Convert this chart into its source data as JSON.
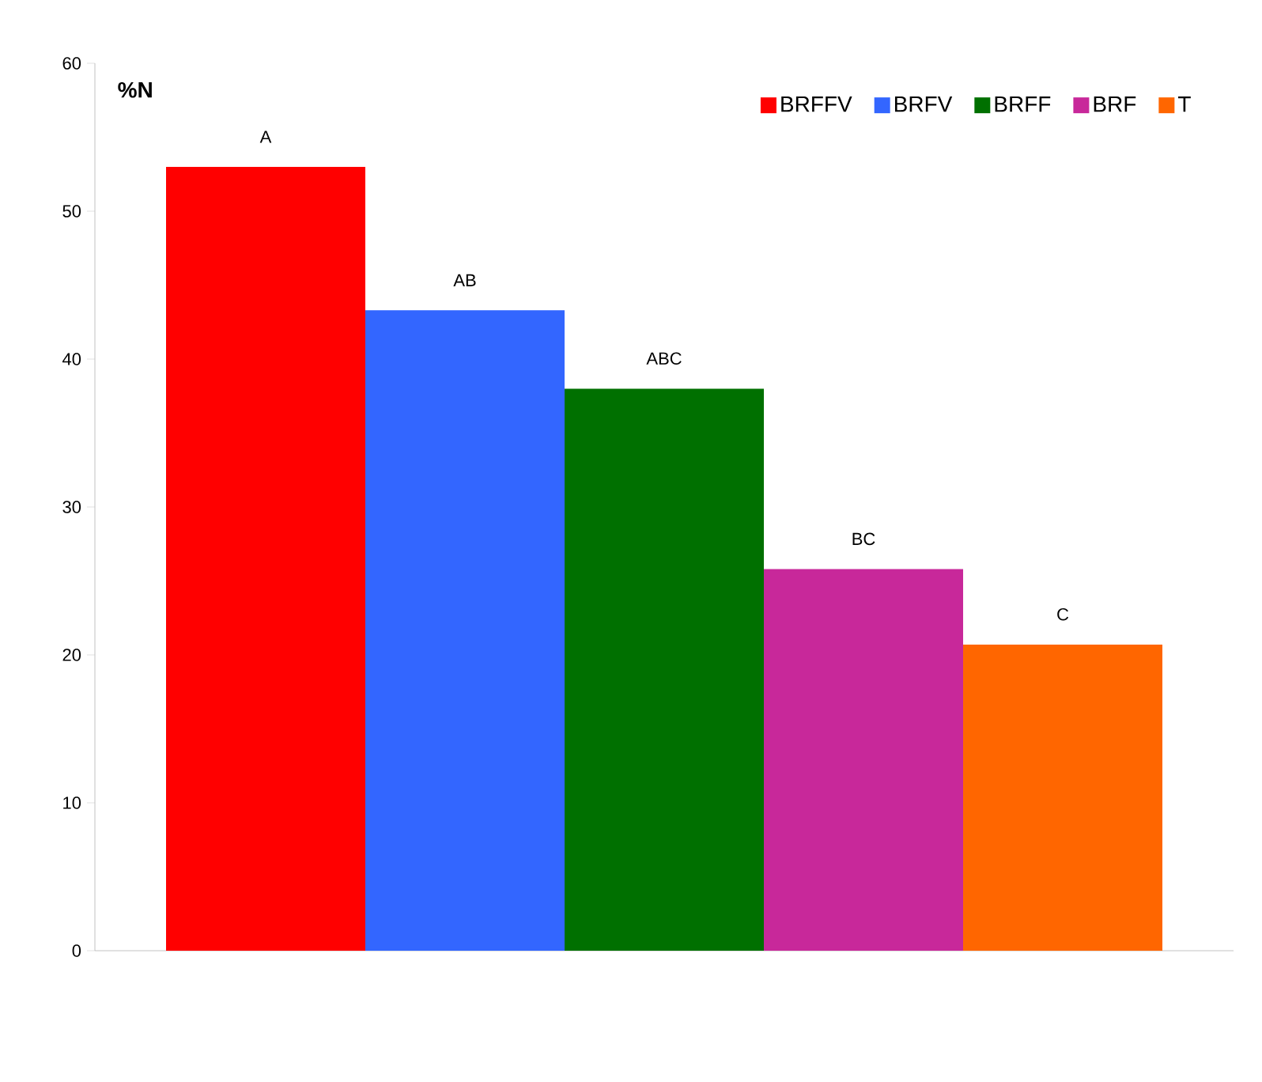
{
  "chart_data": {
    "type": "bar",
    "ylabel": "%N",
    "categories": [
      null
    ],
    "series": [
      {
        "name": "BRFFV",
        "color": "#ff0000",
        "values": [
          53
        ]
      },
      {
        "name": "BRFV",
        "color": "#3366ff",
        "values": [
          43.3
        ]
      },
      {
        "name": "BRFF",
        "color": "#007000",
        "values": [
          38
        ]
      },
      {
        "name": "BRF",
        "color": "#c8289a",
        "values": [
          25.8
        ]
      },
      {
        "name": "T",
        "color": "#ff6600",
        "values": [
          20.7
        ]
      }
    ],
    "ylim": [
      0,
      60
    ],
    "yticks": [
      0,
      10,
      20,
      30,
      40,
      50,
      60
    ],
    "grid": false,
    "legend": "top right",
    "annotations": [
      {
        "text": "A",
        "y": 53
      },
      {
        "text": "AB",
        "y": 43.3
      },
      {
        "text": "ABC",
        "y": 38
      },
      {
        "text": "BC",
        "y": 25.8
      },
      {
        "text": "C",
        "y": 20.7
      }
    ]
  }
}
